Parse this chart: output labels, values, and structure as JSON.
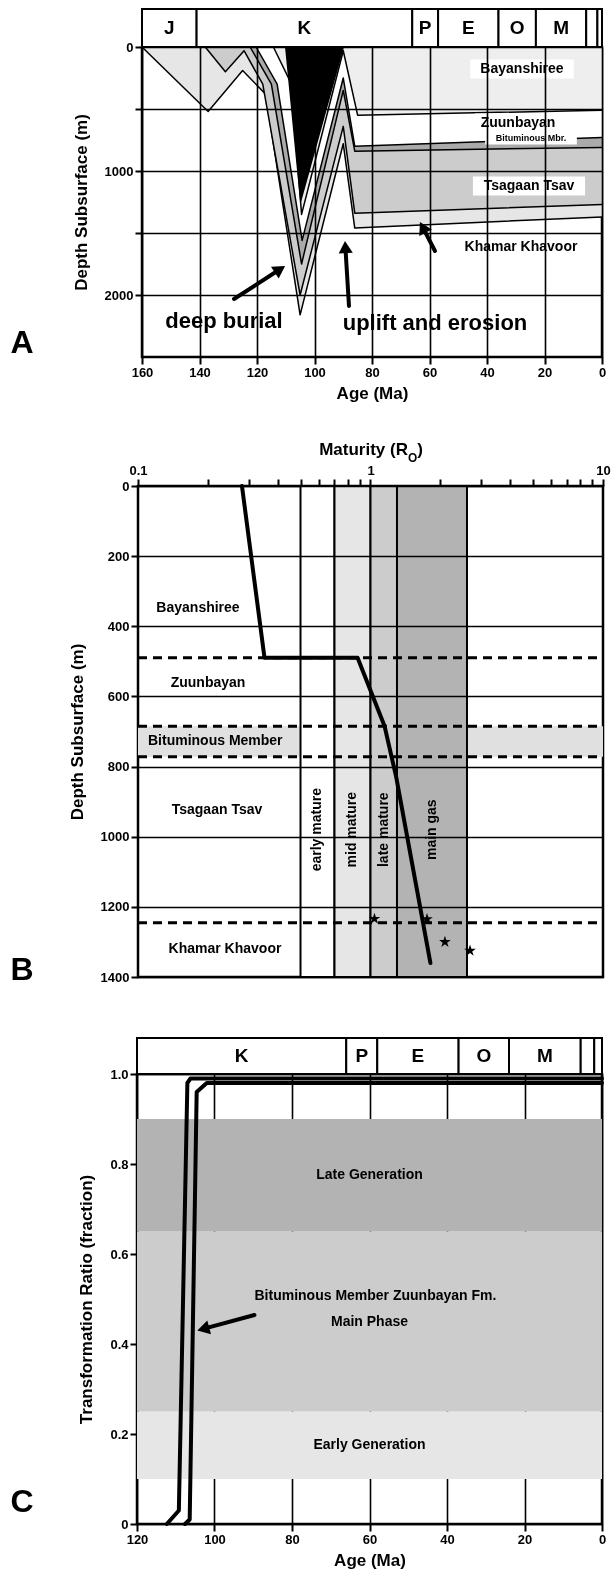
{
  "chart_data": [
    {
      "type": "area",
      "title": "A",
      "xlabel": "Age (Ma)",
      "ylabel": "Depth Subsurface (m)",
      "xlim": [
        160,
        0
      ],
      "xticks": [
        160,
        140,
        120,
        100,
        80,
        60,
        40,
        20,
        0
      ],
      "ylim": [
        2500,
        0
      ],
      "yticks": [
        0,
        {
          "value": 500,
          "label": null
        },
        1000,
        {
          "value": 1500,
          "label": null
        },
        2000
      ],
      "grid": true,
      "series": [
        {
          "color": "#e6e6e6",
          "x": [
            160,
            137,
            125,
            117,
            105,
            90,
            86,
            0
          ],
          "values": [
            0,
            520,
            190,
            380,
            2160,
            780,
            1460,
            1370
          ]
        },
        {
          "color": "#cccccc",
          "x": [
            138,
            131,
            124.5,
            118,
            105,
            90,
            86,
            0
          ],
          "values": [
            0,
            200,
            30,
            300,
            2000,
            640,
            1340,
            1270
          ]
        },
        {
          "color": "#aaaaaa",
          "x": [
            122.4,
            115,
            104.5,
            90,
            86,
            0
          ],
          "values": [
            0,
            300,
            1750,
            350,
            840,
            810
          ]
        },
        {
          "color": "#ffffff",
          "x": [
            120.3,
            113,
            104.3,
            90,
            86,
            0
          ],
          "values": [
            0,
            300,
            1560,
            250,
            800,
            730
          ]
        },
        {
          "color": "#eeeeee",
          "x": [
            114.3,
            108,
            104.5,
            90,
            85,
            0
          ],
          "values": [
            0,
            300,
            1350,
            30,
            550,
            510
          ]
        },
        {
          "color": "#000000",
          "x": [
            110,
            104.8,
            90
          ],
          "values": [
            0,
            1240,
            0
          ]
        }
      ],
      "annotations": [
        "J",
        "K",
        "P",
        "E",
        "O",
        "M",
        "Bayanshiree",
        "Zuunbayan",
        "Bituminous Mbr.",
        "Tsagaan Tsav",
        "Khamar Khavoor",
        "deep burial",
        "uplift and erosion"
      ]
    },
    {
      "type": "line",
      "title": "B",
      "xlabel": "Maturity (R$_{O}$)",
      "ylabel": "Depth Subsurface (m)",
      "log": "x",
      "xlim": [
        0.1,
        10
      ],
      "xticks": [
        0.1,
        {
          "value": 0.2,
          "label": null
        },
        {
          "value": 0.3,
          "label": null
        },
        {
          "value": 0.4,
          "label": null
        },
        {
          "value": 0.5,
          "label": null
        },
        {
          "value": 0.6,
          "label": null
        },
        {
          "value": 0.7,
          "label": null
        },
        {
          "value": 0.8,
          "label": null
        },
        {
          "value": 0.9,
          "label": null
        },
        1,
        {
          "value": 2,
          "label": null
        },
        {
          "value": 3,
          "label": null
        },
        {
          "value": 4,
          "label": null
        },
        {
          "value": 5,
          "label": null
        },
        {
          "value": 6,
          "label": null
        },
        {
          "value": 7,
          "label": null
        },
        {
          "value": 8,
          "label": null
        },
        {
          "value": 9,
          "label": null
        },
        10
      ],
      "ylim": [
        1400,
        0
      ],
      "yticks": [
        0,
        200,
        400,
        600,
        800,
        1000,
        1200,
        1400
      ],
      "grid": "y",
      "bands": [
        {
          "axis": "y",
          "from": 685,
          "to": 772,
          "label": "Bituminous Member",
          "color": "#e0e0e0"
        },
        {
          "axis": "x",
          "from": 0.5,
          "to": 0.7,
          "label": "early mature",
          "color": "#ffffff"
        },
        {
          "axis": "x",
          "from": 0.7,
          "to": 1,
          "label": "mid mature",
          "color": "#e6e6e6"
        },
        {
          "axis": "x",
          "from": 1,
          "to": 1.3,
          "label": "late mature",
          "color": "#cccccc"
        },
        {
          "axis": "x",
          "from": 1.3,
          "to": 2.6,
          "label": "main gas",
          "color": "#b3b3b3"
        }
      ],
      "ref_lines": [
        {
          "axis": "y",
          "value": 490,
          "line_style": "dashed"
        },
        {
          "axis": "y",
          "value": 685,
          "line_style": "dashed"
        },
        {
          "axis": "y",
          "value": 772,
          "line_style": "dashed"
        },
        {
          "axis": "y",
          "value": 1245,
          "line_style": "dashed"
        }
      ],
      "series": [
        {
          "color": "#000000",
          "x": [
            0.28,
            0.35,
            0.88,
            1.15,
            1.29,
            1.81
          ],
          "values": [
            0,
            490,
            490,
            685,
            830,
            1360
          ]
        },
        {
          "type": "scatter",
          "color": "#000000",
          "marker": "star",
          "x": [
            1.04,
            1.75,
            2.09,
            2.68
          ],
          "values": [
            1234,
            1235,
            1300,
            1325
          ]
        }
      ],
      "annotations": [
        "Bayanshiree",
        "Zuunbayan",
        "Tsagaan Tsav",
        "Khamar Khavoor"
      ]
    },
    {
      "type": "line",
      "title": "C",
      "xlabel": "Age (Ma)",
      "ylabel": "Transformation Ratio (fraction)",
      "xlim": [
        120,
        0
      ],
      "xticks": [
        120,
        100,
        80,
        60,
        40,
        20,
        0
      ],
      "ylim": [
        0,
        1
      ],
      "yticks": [
        0,
        0.2,
        0.4,
        0.6,
        0.8,
        {
          "value": 1,
          "label": "1.0"
        }
      ],
      "grid": true,
      "bands": [
        {
          "axis": "y",
          "from": 0.1,
          "to": 0.25,
          "label": "Early Generation",
          "color": "#e6e6e6"
        },
        {
          "axis": "y",
          "from": 0.25,
          "to": 0.65,
          "label": "Main Phase",
          "color": "#cccccc"
        },
        {
          "axis": "y",
          "from": 0.65,
          "to": 0.9,
          "label": "Late Generation",
          "color": "#b3b3b3"
        }
      ],
      "series": [
        {
          "color": "#000000",
          "x": [
            112.3,
            109.2,
            107,
            106.2,
            0
          ],
          "values": [
            0,
            0.03,
            0.98,
            0.99,
            0.99
          ]
        },
        {
          "color": "#000000",
          "x": [
            107.6,
            106.4,
            104.6,
            102,
            0
          ],
          "values": [
            0,
            0.01,
            0.96,
            0.98,
            0.98
          ]
        }
      ],
      "annotations": [
        "K",
        "P",
        "E",
        "O",
        "M",
        {
          "text": "Bituminous Member Zuunbayan Fm.",
          "x": 104.4,
          "y": 0.43
        }
      ]
    }
  ]
}
